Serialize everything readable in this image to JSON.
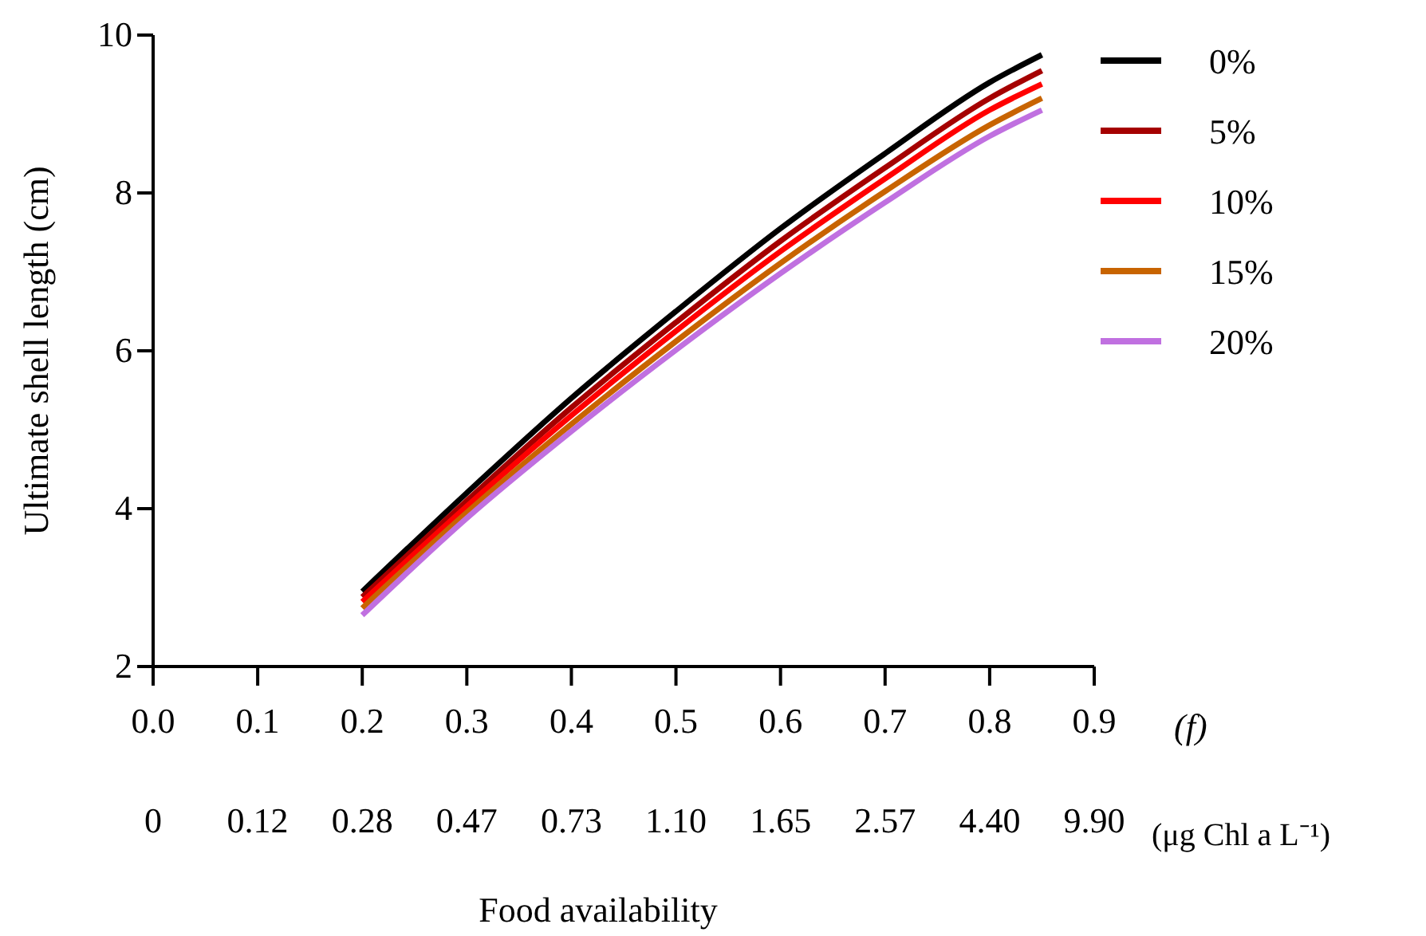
{
  "chart_data": {
    "type": "line",
    "ylabel": "Ultimate shell length (cm)",
    "xlabel": "Food availability",
    "x2label": "(μg Chl a L⁻¹)",
    "annotations": [
      "(f)",
      "0",
      "0.12",
      "0.28",
      "0.47",
      "0.73",
      "1.10",
      "1.65",
      "2.57",
      "4.40",
      "9.90"
    ],
    "x": [
      0.2,
      0.3,
      0.4,
      0.5,
      0.6,
      0.7,
      0.8,
      0.85
    ],
    "xlim": [
      0,
      0.9
    ],
    "xticks": [
      {
        "value": 0,
        "label": "0.0"
      },
      0.1,
      0.2,
      0.3,
      0.4,
      0.5,
      0.6,
      0.7,
      0.8,
      0.9
    ],
    "ylim": [
      2,
      10
    ],
    "yticks": [
      2,
      4,
      6,
      8,
      10
    ],
    "legend": "top right",
    "grid": false,
    "marker": "none",
    "line_style": "solid",
    "series": [
      {
        "name": "0%",
        "color": "#000000",
        "values": [
          2.95,
          4.2,
          5.4,
          6.5,
          7.55,
          8.5,
          9.4,
          9.75
        ]
      },
      {
        "name": "5%",
        "color": "#a50000",
        "values": [
          2.88,
          4.1,
          5.28,
          6.36,
          7.39,
          8.32,
          9.2,
          9.55
        ]
      },
      {
        "name": "10%",
        "color": "#ff0000",
        "values": [
          2.82,
          4.03,
          5.18,
          6.25,
          7.26,
          8.18,
          9.05,
          9.38
        ]
      },
      {
        "name": "15%",
        "color": "#c86400",
        "values": [
          2.74,
          3.95,
          5.07,
          6.12,
          7.11,
          8.02,
          8.86,
          9.2
        ]
      },
      {
        "name": "20%",
        "color": "#c070e0",
        "values": [
          2.65,
          3.88,
          4.98,
          6.01,
          6.98,
          7.88,
          8.72,
          9.05
        ]
      }
    ]
  }
}
